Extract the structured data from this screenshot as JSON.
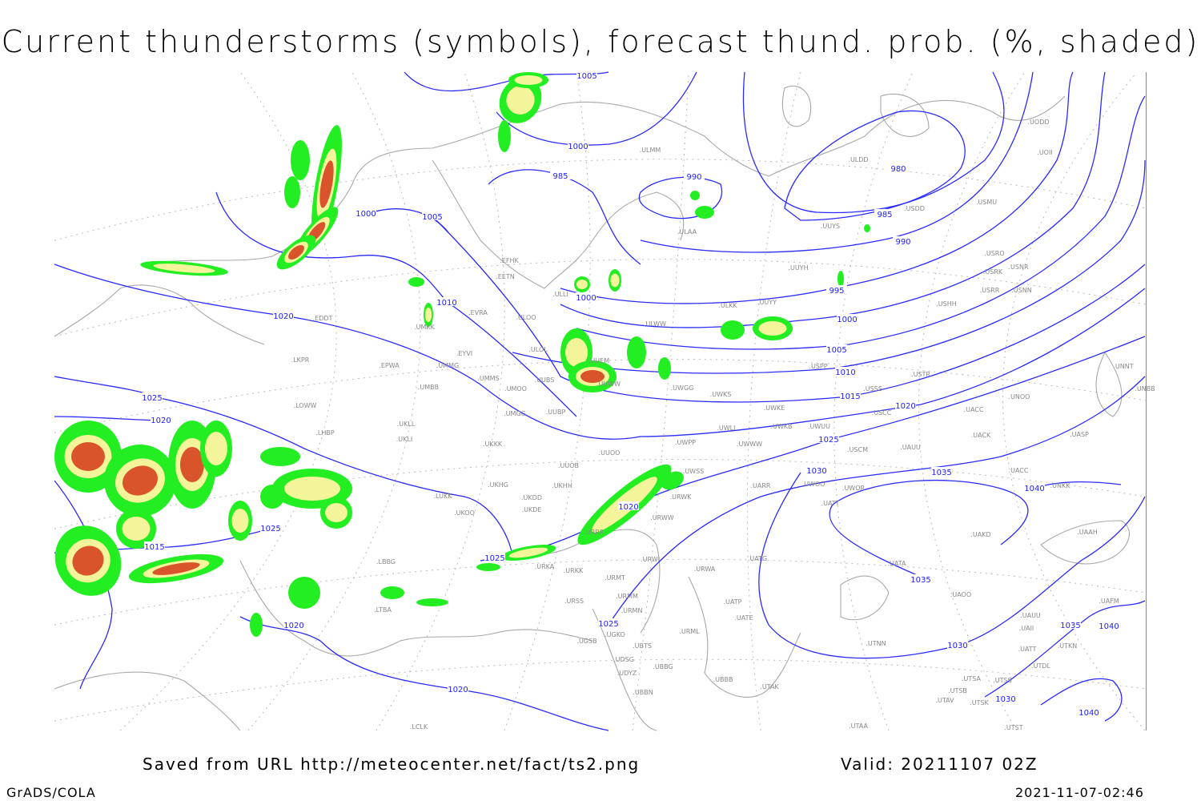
{
  "title": "Current thunderstorms (symbols), forecast thund. prob. (%, shaded)",
  "footer": {
    "saved_from": "Saved from URL http://meteocenter.net/fact/ts2.png",
    "valid": "Valid: 20211107 02Z",
    "software": "GrADS/COLA",
    "timestamp": "2021-11-07-02:46"
  },
  "colors": {
    "isobar": "#2a2aff",
    "coastline": "#a8a8a8",
    "prob_low": "#22ee22",
    "prob_mid": "#f4f49a",
    "prob_high": "#d9542a"
  },
  "isobar_labels": [
    "1005",
    "1000",
    "985",
    "990",
    "980",
    "985",
    "990",
    "995",
    "1000",
    "1005",
    "1010",
    "1015",
    "1020",
    "1025",
    "1030",
    "1035",
    "1040",
    "1000",
    "1005",
    "1010",
    "1000",
    "1020",
    "1025",
    "1020",
    "1015",
    "1025",
    "1020",
    "1025",
    "1025",
    "1020",
    "1020",
    "1030",
    "1030",
    "1035",
    "1040",
    "1040",
    "1035"
  ],
  "stations": [
    "ULMM",
    "ULDD",
    "UODD",
    "UOII",
    "USDD",
    "USMU",
    "UUYS",
    "ULAA",
    "USRO",
    "USRK",
    "USNR",
    "USRR",
    "USNN",
    "USHH",
    "UUYH",
    "EFHK",
    "EETN",
    "ULLI",
    "UUYY",
    "ULKK",
    "ULWW",
    "EVRA",
    "ULOO",
    "UMKK",
    "EYVI",
    "ULOL",
    "UUEM",
    "UMMG",
    "EPWA",
    "LKPR",
    "EDDT",
    "UMMS",
    "UMOO",
    "UUBS",
    "UUWW",
    "UWGG",
    "UWKS",
    "USPP",
    "USTR",
    "USSS",
    "UNNT",
    "UNBB",
    "UNOO",
    "UMBB",
    "LOWW",
    "UWKE",
    "USCC",
    "UACC",
    "LHBP",
    "UKLL",
    "UKLI",
    "UMGG",
    "UUBP",
    "UWLL",
    "UWKB",
    "UWUU",
    "UWPP",
    "UWWW",
    "USCM",
    "UAUU",
    "UACK",
    "UASP",
    "UKKK",
    "UUOO",
    "UUOB",
    "UACC",
    "UWSS",
    "UARR",
    "UWOO",
    "UWOR",
    "UATT",
    "UNKK",
    "LUKK",
    "UKHG",
    "UKDD",
    "UKHH",
    "UKOO",
    "UKDE",
    "URWK",
    "URWW",
    "UAKD",
    "UAAH",
    "URRR",
    "URWI",
    "UATG",
    "UATA",
    "URKA",
    "URKK",
    "URMT",
    "URWA",
    "UAOO",
    "UAII",
    "UATT",
    "UTKN",
    "UAFM",
    "UAUU",
    "UATP",
    "UATE",
    "URSS",
    "URMM",
    "URMN",
    "URML",
    "UTNN",
    "UGSB",
    "UGKO",
    "UBTS",
    "UDSG",
    "UBBG",
    "UBBB",
    "UDYZ",
    "UBBN",
    "UTAK",
    "UTDL",
    "UTSA",
    "UTSB",
    "UTSS",
    "UTAV",
    "UTSK",
    "UTAA",
    "UTST",
    "LCLK",
    "LTBA",
    "LBBG"
  ]
}
